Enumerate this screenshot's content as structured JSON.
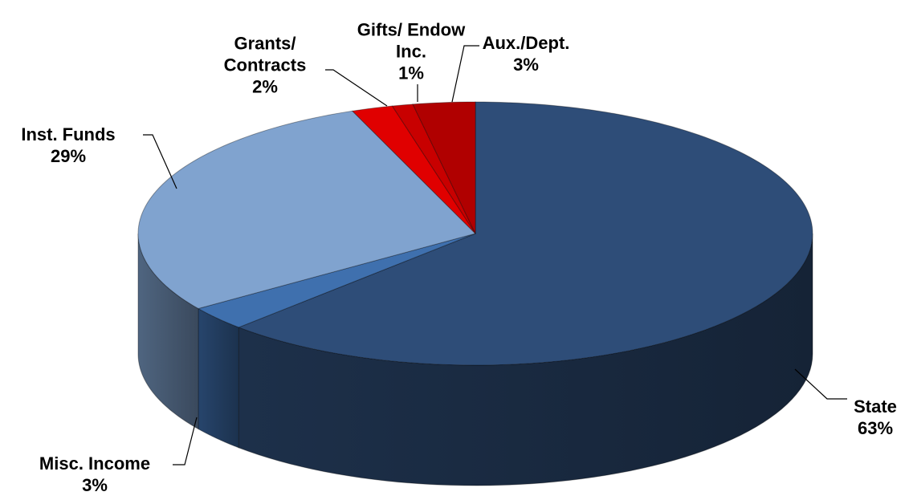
{
  "chart_data": {
    "type": "pie",
    "categories": [
      "State",
      "Misc. Income",
      "Inst. Funds",
      "Grants/ Contracts",
      "Gifts/ Endow Inc.",
      "Aux./Dept."
    ],
    "values": [
      63,
      3,
      29,
      2,
      1,
      3
    ],
    "value_labels": [
      "63%",
      "3%",
      "29%",
      "2%",
      "1%",
      "3%"
    ],
    "colors": [
      "#2e4d78",
      "#3f70ae",
      "#80a3cf",
      "#e00000",
      "#c80000",
      "#b00000"
    ],
    "start_angle": 0,
    "direction": "clockwise",
    "three_d": true
  }
}
